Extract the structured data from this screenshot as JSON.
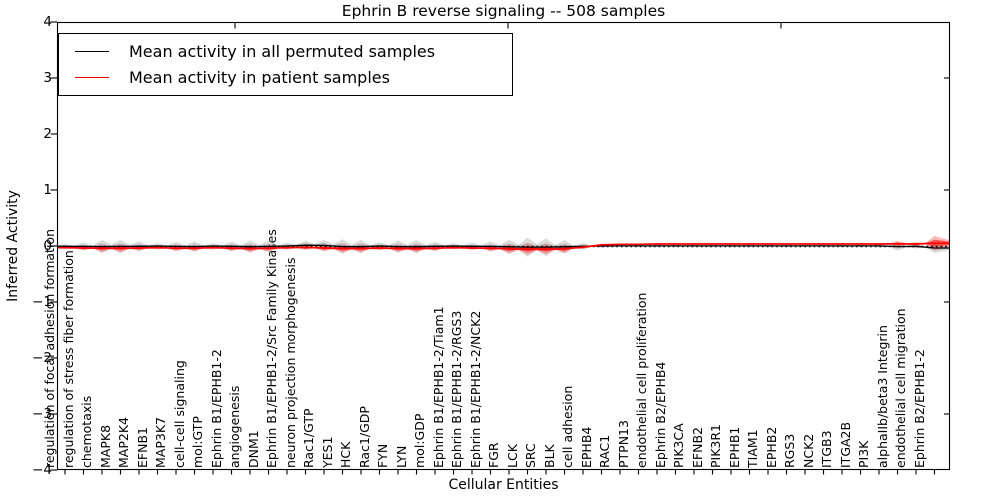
{
  "title": "Ephrin B reverse signaling -- 508 samples",
  "axes": {
    "ylabel": "Inferred Activity",
    "xlabel": "Cellular Entities",
    "yticks": [
      "4",
      "3",
      "2",
      "1",
      "0",
      "−1",
      "−2",
      "−3",
      "−4"
    ]
  },
  "legend": [
    {
      "label": "Mean activity in all permuted samples",
      "color": "#000000"
    },
    {
      "label": "Mean activity in patient samples",
      "color": "#ff0000"
    }
  ],
  "colors": {
    "permuted_line": "#000000",
    "patient_line": "#ff0000",
    "permuted_band_outer": "#b0b0b0",
    "permuted_band_inner": "#8c8c8c",
    "patient_band_outer": "#ff5555",
    "patient_band_inner": "#ff0000",
    "zero_line": "#000000"
  },
  "chart_data": {
    "type": "line",
    "title": "Ephrin B reverse signaling -- 508 samples",
    "xlabel": "Cellular Entities",
    "ylabel": "Inferred Activity",
    "ylim": [
      -4,
      4
    ],
    "grid": false,
    "legend_position": "upper left",
    "zero_reference_line": 0,
    "categories": [
      "regulation of focal adhesion formation",
      "regulation of stress fiber formation",
      "chemotaxis",
      "MAPK8",
      "MAP2K4",
      "EFNB1",
      "MAP3K7",
      "cell-cell signaling",
      "mol:GTP",
      "Ephrin B1/EPHB1-2",
      "angiogenesis",
      "DNM1",
      "Ephrin B1/EPHB1-2/Src Family Kinases",
      "neuron projection morphogenesis",
      "Rac1/GTP",
      "YES1",
      "HCK",
      "Rac1/GDP",
      "FYN",
      "LYN",
      "mol:GDP",
      "Ephrin B1/EPHB1-2/Tiam1",
      "Ephrin B1/EPHB1-2/RGS3",
      "Ephrin B1/EPHB1-2/NCK2",
      "FGR",
      "LCK",
      "SRC",
      "BLK",
      "cell adhesion",
      "EPHB4",
      "RAC1",
      "PTPN13",
      "endothelial cell proliferation",
      "Ephrin B2/EPHB4",
      "PIK3CA",
      "EFNB2",
      "PIK3R1",
      "EPHB1",
      "TIAM1",
      "EPHB2",
      "RGS3",
      "NCK2",
      "ITGB3",
      "ITGA2B",
      "PI3K",
      "alphaIIb/beta3 Integrin",
      "endothelial cell migration",
      "Ephrin B2/EPHB1-2"
    ],
    "series": [
      {
        "name": "Mean activity in all permuted samples",
        "color": "#000000",
        "values": [
          -0.005,
          -0.008,
          -0.01,
          -0.008,
          -0.005,
          0.0,
          -0.008,
          -0.01,
          0.0,
          -0.005,
          -0.012,
          -0.008,
          0.0,
          0.015,
          0.01,
          -0.01,
          -0.012,
          0.0,
          -0.01,
          -0.012,
          -0.005,
          0.0,
          -0.005,
          -0.008,
          -0.015,
          -0.02,
          -0.02,
          -0.015,
          -0.005,
          0.0,
          0.002,
          0.002,
          0.002,
          0.002,
          0.002,
          0.002,
          0.002,
          0.002,
          0.002,
          0.002,
          0.002,
          0.002,
          0.002,
          0.002,
          0.002,
          -0.01,
          -0.005,
          -0.035
        ]
      },
      {
        "name": "Mean activity in patient samples",
        "color": "#ff0000",
        "values": [
          -0.03,
          -0.035,
          -0.04,
          -0.04,
          -0.035,
          -0.03,
          -0.04,
          -0.04,
          -0.03,
          -0.04,
          -0.045,
          -0.04,
          -0.03,
          -0.025,
          -0.035,
          -0.045,
          -0.045,
          -0.035,
          -0.045,
          -0.045,
          -0.04,
          -0.03,
          -0.035,
          -0.04,
          -0.05,
          -0.055,
          -0.055,
          -0.05,
          -0.02,
          0.02,
          0.03,
          0.03,
          0.035,
          0.035,
          0.035,
          0.035,
          0.035,
          0.035,
          0.035,
          0.035,
          0.035,
          0.035,
          0.035,
          0.035,
          0.035,
          0.04,
          0.035,
          0.05
        ]
      }
    ],
    "bands": [
      {
        "name": "permuted activity distribution (violin half-heights)",
        "color": "#b0b0b0",
        "halfwidths": [
          0.04,
          0.07,
          0.12,
          0.12,
          0.09,
          0.05,
          0.08,
          0.09,
          0.05,
          0.08,
          0.11,
          0.1,
          0.06,
          0.08,
          0.1,
          0.13,
          0.12,
          0.07,
          0.11,
          0.12,
          0.08,
          0.05,
          0.06,
          0.09,
          0.13,
          0.17,
          0.16,
          0.12,
          0.06,
          0.03,
          0.02,
          0.02,
          0.02,
          0.02,
          0.02,
          0.02,
          0.02,
          0.02,
          0.02,
          0.02,
          0.02,
          0.02,
          0.02,
          0.02,
          0.03,
          0.07,
          0.04,
          0.09
        ]
      },
      {
        "name": "patient activity distribution (violin half-heights)",
        "color": "#ff5555",
        "halfwidths": [
          0.025,
          0.04,
          0.07,
          0.07,
          0.05,
          0.03,
          0.05,
          0.055,
          0.03,
          0.05,
          0.065,
          0.06,
          0.035,
          0.045,
          0.06,
          0.075,
          0.07,
          0.04,
          0.065,
          0.07,
          0.05,
          0.03,
          0.035,
          0.055,
          0.08,
          0.1,
          0.095,
          0.075,
          0.035,
          0.02,
          0.015,
          0.015,
          0.015,
          0.015,
          0.015,
          0.015,
          0.015,
          0.015,
          0.015,
          0.015,
          0.015,
          0.015,
          0.015,
          0.015,
          0.02,
          0.05,
          0.035,
          0.13
        ]
      }
    ]
  }
}
